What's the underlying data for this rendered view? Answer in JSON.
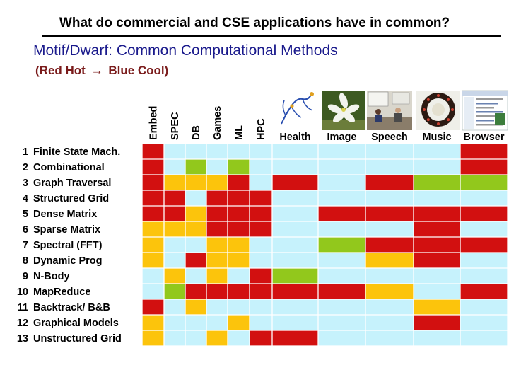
{
  "title": "What  do commercial and CSE applications have in common?",
  "subtitle": "Motif/Dwarf: Common Computational Methods",
  "legend": {
    "open": "(",
    "hot": "Red Hot",
    "arrow": "→",
    "cool": "Blue Cool",
    "close": ")"
  },
  "colors": {
    "red": "#d21010",
    "orange": "#fcc40c",
    "green": "#92c81c",
    "blue": "#c6f2fc",
    "subtitle": "#1a1a8c",
    "legend_text": "#7a1b1b"
  },
  "columns": [
    "Embed",
    "SPEC",
    "DB",
    "Games",
    "ML",
    "HPC",
    "Health",
    "Image",
    "Speech",
    "Music",
    "Browser"
  ],
  "thumbnails": [
    "health-diagram-thumbnail",
    "flower-photo-thumbnail",
    "meeting-photo-thumbnail",
    "drum-ring-photo-thumbnail",
    "browser-screenshot-thumbnail"
  ],
  "rows": [
    {
      "num": "1",
      "label": "Finite State Mach."
    },
    {
      "num": "2",
      "label": "Combinational"
    },
    {
      "num": "3",
      "label": "Graph Traversal"
    },
    {
      "num": "4",
      "label": "Structured Grid"
    },
    {
      "num": "5",
      "label": "Dense Matrix"
    },
    {
      "num": "6",
      "label": "Sparse Matrix"
    },
    {
      "num": "7",
      "label": "Spectral (FFT)"
    },
    {
      "num": "8",
      "label": "Dynamic Prog"
    },
    {
      "num": "9",
      "label": "N-Body"
    },
    {
      "num": "10",
      "label": "MapReduce"
    },
    {
      "num": "11",
      "label": "Backtrack/ B&B"
    },
    {
      "num": "12",
      "label": "Graphical Models"
    },
    {
      "num": "13",
      "label": "Unstructured Grid"
    }
  ],
  "heat": [
    [
      "R",
      "B",
      "B",
      "B",
      "B",
      "B",
      "B",
      "B",
      "B",
      "B",
      "R"
    ],
    [
      "R",
      "B",
      "G",
      "B",
      "G",
      "B",
      "B",
      "B",
      "B",
      "B",
      "R"
    ],
    [
      "R",
      "O",
      "O",
      "O",
      "R",
      "B",
      "R",
      "B",
      "R",
      "G",
      "G"
    ],
    [
      "R",
      "R",
      "B",
      "R",
      "R",
      "R",
      "B",
      "B",
      "B",
      "B",
      "B"
    ],
    [
      "R",
      "R",
      "O",
      "R",
      "R",
      "R",
      "B",
      "R",
      "R",
      "R",
      "R"
    ],
    [
      "O",
      "O",
      "O",
      "R",
      "R",
      "R",
      "B",
      "B",
      "B",
      "R",
      "B"
    ],
    [
      "O",
      "B",
      "B",
      "O",
      "O",
      "B",
      "B",
      "G",
      "R",
      "R",
      "R"
    ],
    [
      "O",
      "B",
      "R",
      "O",
      "O",
      "B",
      "B",
      "B",
      "O",
      "R",
      "B"
    ],
    [
      "B",
      "O",
      "B",
      "O",
      "B",
      "R",
      "G",
      "B",
      "B",
      "B",
      "B"
    ],
    [
      "B",
      "G",
      "R",
      "R",
      "R",
      "R",
      "R",
      "R",
      "O",
      "B",
      "R"
    ],
    [
      "R",
      "B",
      "O",
      "B",
      "B",
      "B",
      "B",
      "B",
      "B",
      "O",
      "B"
    ],
    [
      "O",
      "B",
      "B",
      "B",
      "O",
      "B",
      "B",
      "B",
      "B",
      "R",
      "B"
    ],
    [
      "O",
      "B",
      "B",
      "O",
      "B",
      "R",
      "R",
      "B",
      "B",
      "B",
      "B"
    ]
  ]
}
